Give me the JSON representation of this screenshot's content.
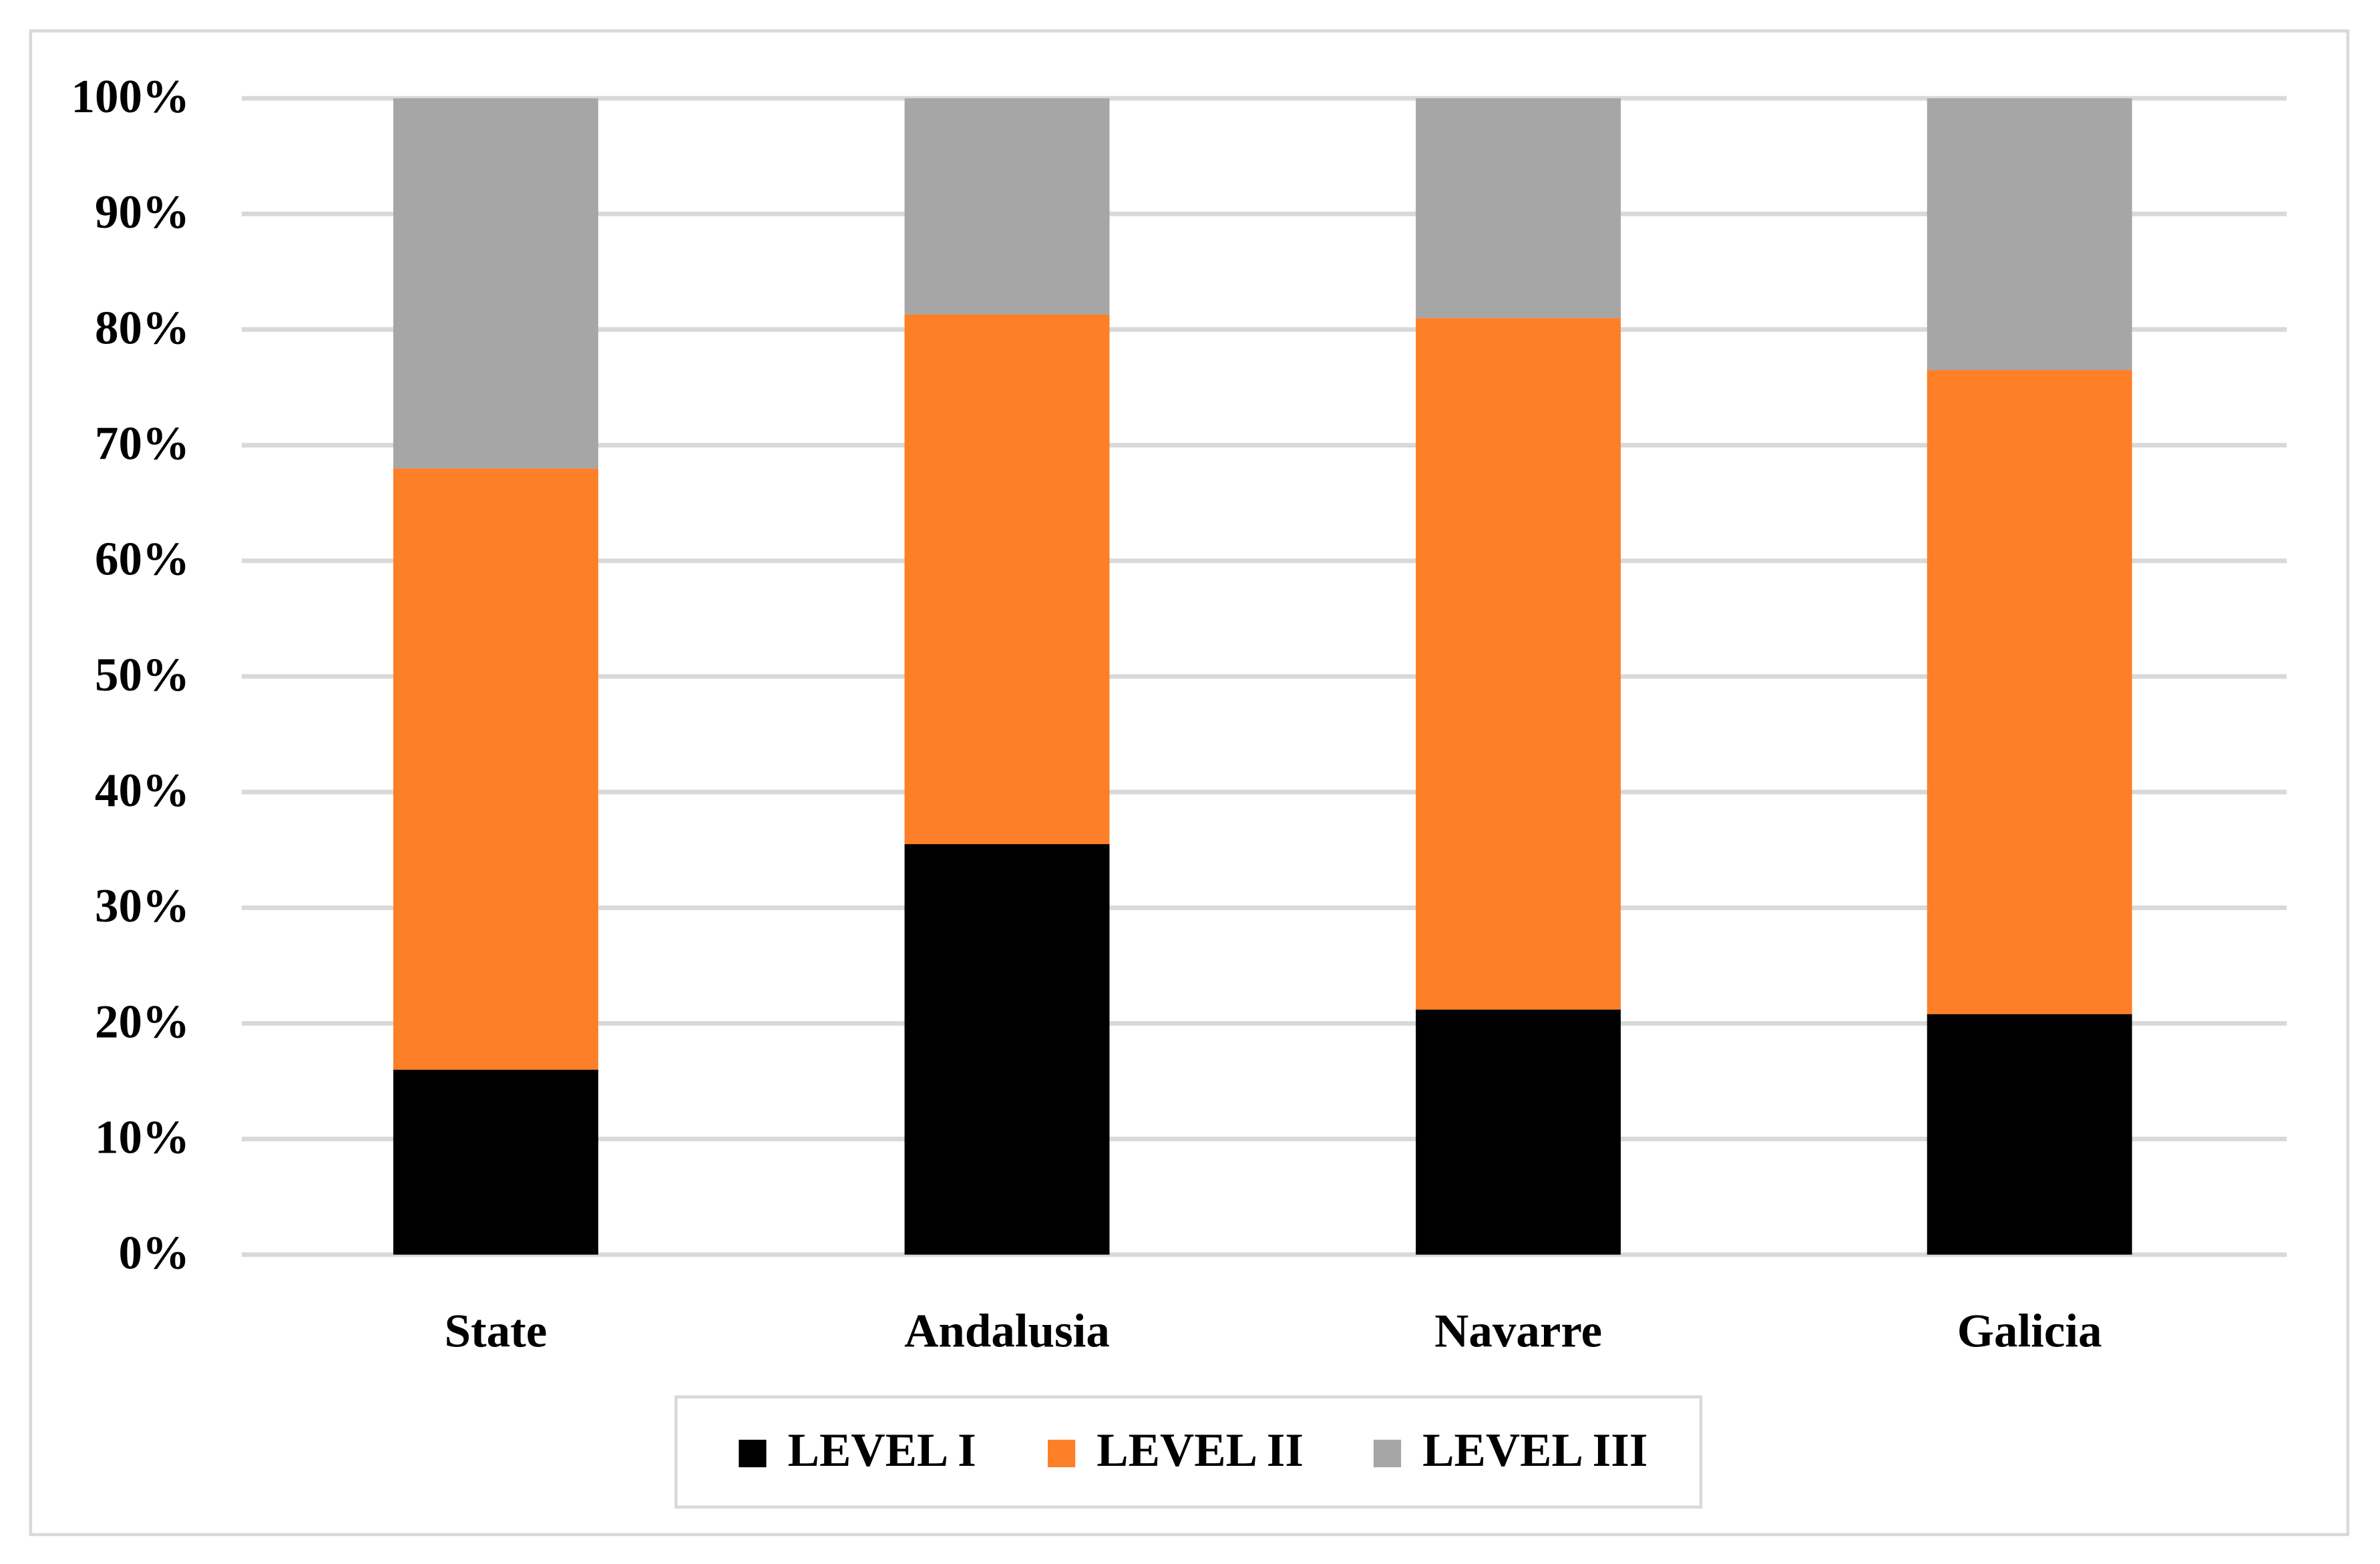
{
  "chart_data": {
    "type": "stacked_bar",
    "categories": [
      "State",
      "Andalusia",
      "Navarre",
      "Galicia"
    ],
    "series": [
      {
        "name": "LEVEL I",
        "color": "#000000",
        "values": [
          16,
          35.5,
          21.2,
          20.8
        ]
      },
      {
        "name": "LEVEL II",
        "color": "#fd7f28",
        "values": [
          52,
          45.8,
          59.8,
          55.7
        ]
      },
      {
        "name": "LEVEL III",
        "color": "#a6a6a6",
        "values": [
          32,
          18.7,
          19,
          23.5
        ]
      }
    ],
    "ylim": [
      0,
      100
    ],
    "yticks": [
      {
        "value": 0,
        "label": "0%"
      },
      {
        "value": 10,
        "label": "10%"
      },
      {
        "value": 20,
        "label": "20%"
      },
      {
        "value": 30,
        "label": "30%"
      },
      {
        "value": 40,
        "label": "40%"
      },
      {
        "value": 50,
        "label": "50%"
      },
      {
        "value": 60,
        "label": "60%"
      },
      {
        "value": 70,
        "label": "70%"
      },
      {
        "value": 80,
        "label": "80%"
      },
      {
        "value": 90,
        "label": "90%"
      },
      {
        "value": 100,
        "label": "100%"
      }
    ],
    "grid": true,
    "legend": "bottom"
  }
}
